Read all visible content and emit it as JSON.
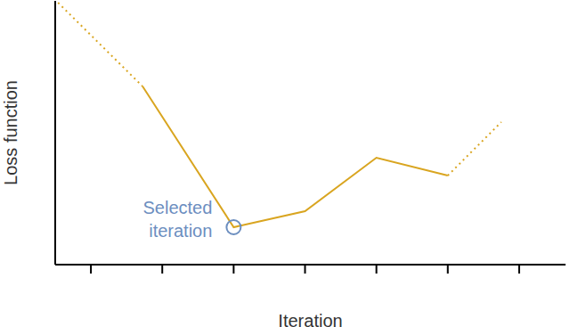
{
  "chart_data": {
    "type": "line",
    "x_label": "Iteration",
    "y_label": "Loss function",
    "xlim": [
      0.5,
      7.65
    ],
    "xticks": [
      1,
      2,
      3,
      4,
      5,
      6,
      7
    ],
    "ylim": [
      0,
      3.7
    ],
    "yticks": [],
    "tick_labels": false,
    "grid": false,
    "series": [
      {
        "color": "#d9a520",
        "line_style": "dotted",
        "x": [
          0.54,
          1.725
        ],
        "values": [
          3.675,
          2.5
        ]
      },
      {
        "color": "#d9a520",
        "line_style": "solid",
        "x": [
          1.725,
          3,
          4,
          5,
          6
        ],
        "values": [
          2.5,
          0.525,
          0.75,
          1.5,
          1.25
        ]
      },
      {
        "color": "#d9a520",
        "line_style": "dotted",
        "x": [
          6,
          6.75
        ],
        "values": [
          1.25,
          2.0
        ]
      }
    ],
    "annotations": [
      {
        "text": "Selected iteration",
        "x": 3,
        "y": 0.525,
        "color": "#6c8ebf"
      }
    ]
  }
}
